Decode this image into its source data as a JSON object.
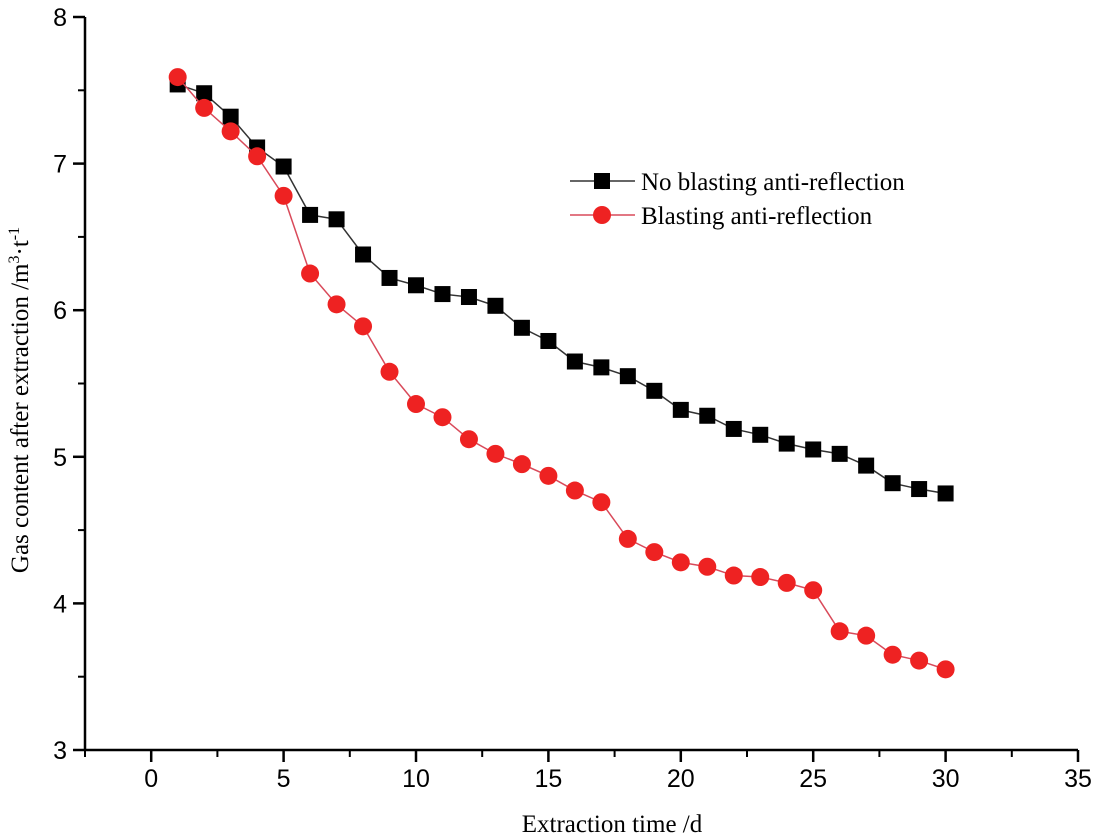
{
  "chart_data": {
    "type": "line",
    "xlabel": "Extraction time /d",
    "ylabel": "Gas content after extraction /m",
    "ylabel_sup1": "3",
    "ylabel_mid": "·t",
    "ylabel_sup2": "-1",
    "xlim": [
      -2.5,
      35
    ],
    "ylim": [
      3,
      8
    ],
    "x_ticks": [
      0,
      5,
      10,
      15,
      20,
      25,
      30,
      35
    ],
    "y_ticks": [
      3,
      4,
      5,
      6,
      7,
      8
    ],
    "grid": false,
    "legend_position": "upper-right",
    "x": [
      1,
      2,
      3,
      4,
      5,
      6,
      7,
      8,
      9,
      10,
      11,
      12,
      13,
      14,
      15,
      16,
      17,
      18,
      19,
      20,
      21,
      22,
      23,
      24,
      25,
      26,
      27,
      28,
      29,
      30
    ],
    "series": [
      {
        "name": "No blasting anti-reflection",
        "color": "#000000",
        "line_color": "#333333",
        "marker": "square",
        "values": [
          7.54,
          7.48,
          7.32,
          7.11,
          6.98,
          6.65,
          6.62,
          6.38,
          6.22,
          6.17,
          6.11,
          6.09,
          6.03,
          5.88,
          5.79,
          5.65,
          5.61,
          5.55,
          5.45,
          5.32,
          5.28,
          5.19,
          5.15,
          5.09,
          5.05,
          5.02,
          4.94,
          4.82,
          4.78,
          4.75
        ]
      },
      {
        "name": "Blasting anti-reflection",
        "color": "#ee2222",
        "line_color": "#d94a5a",
        "marker": "circle",
        "values": [
          7.59,
          7.38,
          7.22,
          7.05,
          6.78,
          6.25,
          6.04,
          5.89,
          5.58,
          5.36,
          5.27,
          5.12,
          5.02,
          4.95,
          4.87,
          4.77,
          4.69,
          4.44,
          4.35,
          4.28,
          4.25,
          4.19,
          4.18,
          4.14,
          4.09,
          3.81,
          3.78,
          3.65,
          3.61,
          3.55
        ]
      }
    ]
  }
}
